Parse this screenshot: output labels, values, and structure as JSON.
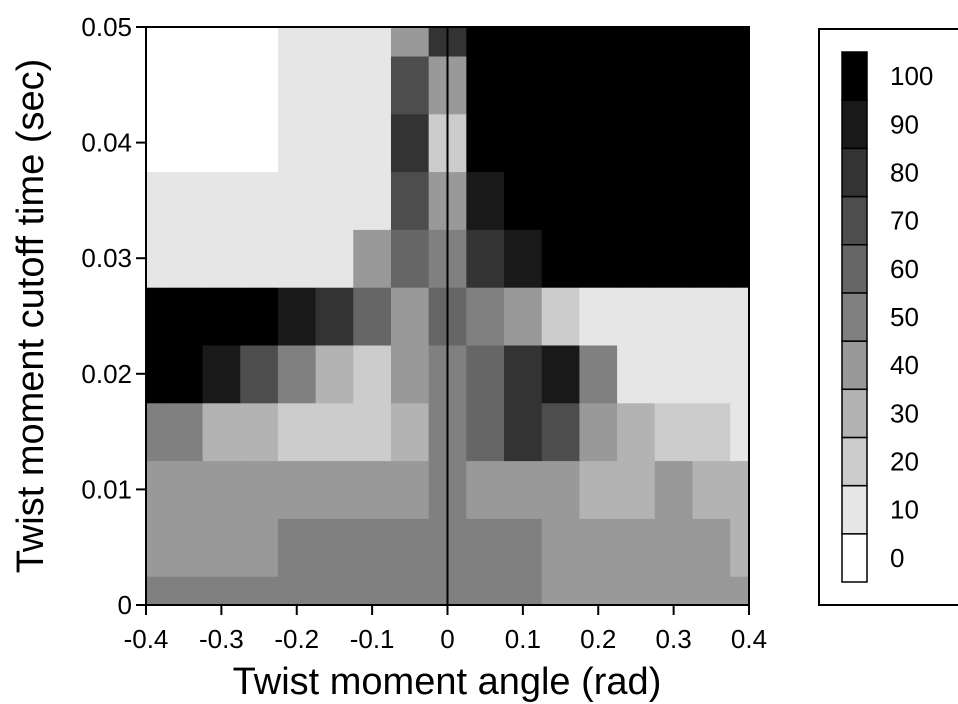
{
  "chart_data": {
    "type": "heatmap",
    "title": "",
    "xlabel": "Twist moment angle (rad)",
    "ylabel": "Twist moment cutoff time (sec)",
    "xlim": [
      -0.4,
      0.4
    ],
    "ylim": [
      0,
      0.05
    ],
    "x_ticks": [
      -0.4,
      -0.3,
      -0.2,
      -0.1,
      0,
      0.1,
      0.2,
      0.3,
      0.4
    ],
    "x_tick_labels": [
      "-0.4",
      "-0.3",
      "-0.2",
      "-0.1",
      "0",
      "0.1",
      "0.2",
      "0.3",
      "0.4"
    ],
    "y_ticks": [
      0,
      0.01,
      0.02,
      0.03,
      0.04,
      0.05
    ],
    "y_tick_labels": [
      "0",
      "0.01",
      "0.02",
      "0.03",
      "0.04",
      "0.05"
    ],
    "colorbar": {
      "range": [
        0,
        100
      ],
      "levels": 11,
      "tick_values": [
        0,
        10,
        20,
        30,
        40,
        50,
        60,
        70,
        80,
        90,
        100
      ],
      "tick_labels": [
        "0",
        "10",
        "20",
        "30",
        "40",
        "50",
        "60",
        "70",
        "80",
        "90",
        "100"
      ],
      "low_color": "#ffffff",
      "high_color": "#000000"
    },
    "vertical_line_x": 0,
    "x": [
      -0.4,
      -0.35,
      -0.3,
      -0.25,
      -0.2,
      -0.15,
      -0.1,
      -0.05,
      0,
      0.05,
      0.1,
      0.15,
      0.2,
      0.25,
      0.3,
      0.35,
      0.4
    ],
    "y": [
      0,
      0.005,
      0.01,
      0.015,
      0.02,
      0.025,
      0.03,
      0.035,
      0.04,
      0.045,
      0.05
    ],
    "z": [
      [
        45,
        45,
        45,
        45,
        45,
        45,
        45,
        45,
        50,
        45,
        45,
        42,
        40,
        40,
        40,
        40,
        40
      ],
      [
        40,
        40,
        40,
        42,
        45,
        45,
        45,
        48,
        50,
        45,
        45,
        40,
        35,
        35,
        40,
        35,
        30
      ],
      [
        35,
        35,
        35,
        38,
        38,
        35,
        35,
        40,
        50,
        40,
        35,
        35,
        28,
        30,
        35,
        30,
        25
      ],
      [
        50,
        45,
        30,
        25,
        20,
        15,
        15,
        30,
        50,
        55,
        80,
        70,
        40,
        25,
        20,
        15,
        10
      ],
      [
        95,
        95,
        85,
        70,
        45,
        25,
        20,
        35,
        50,
        60,
        80,
        85,
        45,
        10,
        5,
        5,
        5
      ],
      [
        100,
        100,
        100,
        95,
        90,
        75,
        60,
        40,
        55,
        50,
        40,
        20,
        10,
        5,
        5,
        5,
        5
      ],
      [
        10,
        10,
        10,
        10,
        10,
        5,
        40,
        60,
        50,
        80,
        90,
        100,
        100,
        100,
        100,
        100,
        100
      ],
      [
        5,
        5,
        5,
        5,
        5,
        5,
        10,
        70,
        40,
        90,
        100,
        100,
        100,
        100,
        100,
        100,
        100
      ],
      [
        0,
        0,
        0,
        0,
        5,
        5,
        5,
        80,
        20,
        100,
        100,
        100,
        100,
        100,
        100,
        100,
        100
      ],
      [
        0,
        0,
        0,
        0,
        5,
        5,
        5,
        70,
        40,
        100,
        100,
        100,
        100,
        100,
        100,
        100,
        100
      ],
      [
        0,
        0,
        0,
        0,
        10,
        5,
        10,
        40,
        80,
        95,
        100,
        100,
        100,
        100,
        100,
        100,
        100
      ]
    ]
  }
}
